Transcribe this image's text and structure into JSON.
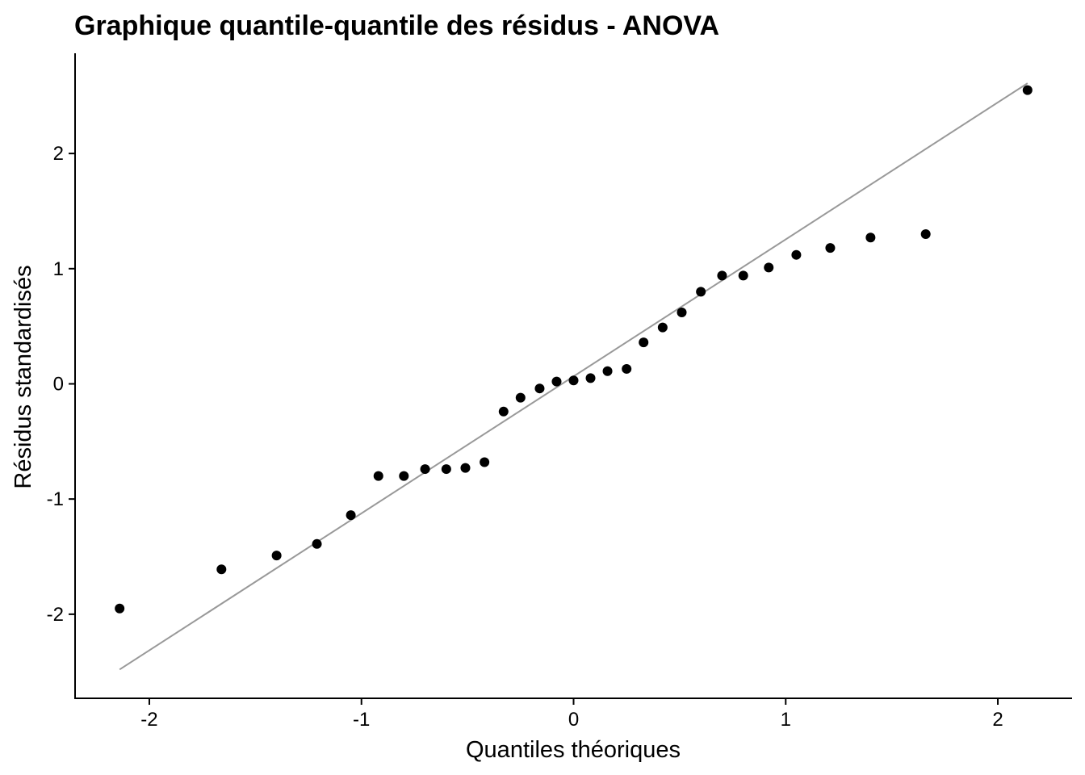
{
  "chart_data": {
    "type": "scatter",
    "title": "Graphique quantile-quantile des résidus - ANOVA",
    "xlabel": "Quantiles théoriques",
    "ylabel": "Résidus standardisés",
    "xlim": [
      -2.35,
      2.35
    ],
    "ylim": [
      -2.73,
      2.87
    ],
    "xticks": [
      -2,
      -1,
      0,
      1,
      2
    ],
    "yticks": [
      -2,
      -1,
      0,
      1,
      2
    ],
    "grid": false,
    "legend": "none",
    "colors": {
      "points": "#000000",
      "reference_line": "#999999"
    },
    "reference_line": {
      "x": [
        -2.14,
        2.14
      ],
      "y": [
        -2.48,
        2.61
      ]
    },
    "points": {
      "x": [
        -2.14,
        -1.66,
        -1.4,
        -1.21,
        -1.05,
        -0.92,
        -0.8,
        -0.7,
        -0.6,
        -0.51,
        -0.42,
        -0.33,
        -0.25,
        -0.16,
        -0.08,
        0.0,
        0.08,
        0.16,
        0.25,
        0.33,
        0.42,
        0.51,
        0.6,
        0.7,
        0.8,
        0.92,
        1.05,
        1.21,
        1.4,
        1.66,
        2.14
      ],
      "y": [
        -1.95,
        -1.61,
        -1.49,
        -1.39,
        -1.14,
        -0.8,
        -0.8,
        -0.74,
        -0.74,
        -0.73,
        -0.68,
        -0.24,
        -0.12,
        -0.04,
        0.02,
        0.03,
        0.05,
        0.11,
        0.13,
        0.36,
        0.49,
        0.62,
        0.8,
        0.94,
        0.94,
        1.01,
        1.12,
        1.18,
        1.27,
        1.3,
        2.55
      ]
    }
  }
}
